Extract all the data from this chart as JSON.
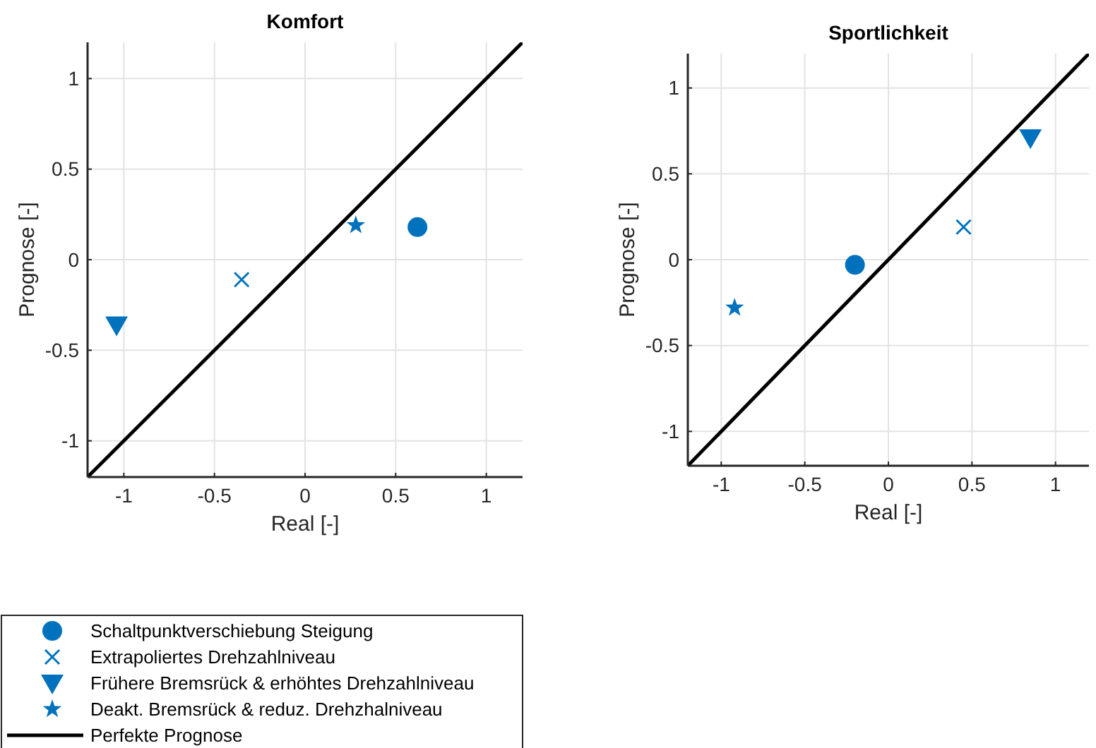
{
  "chart_data": [
    {
      "type": "scatter",
      "title": "Komfort",
      "xlabel": "Real [-]",
      "ylabel": "Prognose [-]",
      "xlim": [
        -1.2,
        1.2
      ],
      "ylim": [
        -1.2,
        1.2
      ],
      "xticks": [
        -1,
        -0.5,
        0,
        0.5,
        1
      ],
      "yticks": [
        -1,
        -0.5,
        0,
        0.5,
        1
      ],
      "grid": true,
      "legend": "bottom",
      "series": [
        {
          "name": "Schaltpunktverschiebung Steigung",
          "color": "#0072bd",
          "marker": "circle",
          "x": [
            0.62
          ],
          "values": [
            0.18
          ]
        },
        {
          "name": "Extrapoliertes Drehzahlniveau",
          "color": "#0072bd",
          "marker": "cross",
          "x": [
            -0.35
          ],
          "values": [
            -0.11
          ]
        },
        {
          "name": "Frühere Bremsrück & erhöhtes Drehzahlniveau",
          "color": "#0072bd",
          "marker": "triangle",
          "x": [
            -1.04
          ],
          "values": [
            -0.36
          ]
        },
        {
          "name": "Deakt. Bremsrück & reduz. Drehzhalniveau",
          "color": "#0072bd",
          "marker": "star",
          "x": [
            0.28
          ],
          "values": [
            0.19
          ]
        },
        {
          "type": "line",
          "name": "Perfekte Prognose",
          "color": "#000000",
          "marker": "none",
          "x": [
            -1.2,
            1.2
          ],
          "values": [
            -1.2,
            1.2
          ]
        }
      ]
    },
    {
      "type": "scatter",
      "title": "Sportlichkeit",
      "xlabel": "Real [-]",
      "ylabel": "Prognose [-]",
      "xlim": [
        -1.2,
        1.2
      ],
      "ylim": [
        -1.2,
        1.2
      ],
      "xticks": [
        -1,
        -0.5,
        0,
        0.5,
        1
      ],
      "yticks": [
        -1,
        -0.5,
        0,
        0.5,
        1
      ],
      "grid": true,
      "series": [
        {
          "color": "#0072bd",
          "marker": "circle",
          "x": [
            -0.2
          ],
          "values": [
            -0.03
          ]
        },
        {
          "color": "#0072bd",
          "marker": "cross",
          "x": [
            0.45
          ],
          "values": [
            0.19
          ]
        },
        {
          "color": "#0072bd",
          "marker": "triangle",
          "x": [
            0.85
          ],
          "values": [
            0.71
          ]
        },
        {
          "color": "#0072bd",
          "marker": "star",
          "x": [
            -0.92
          ],
          "values": [
            -0.28
          ]
        },
        {
          "type": "line",
          "color": "#000000",
          "marker": "none",
          "x": [
            -1.2,
            1.2
          ],
          "values": [
            -1.2,
            1.2
          ]
        }
      ]
    }
  ]
}
